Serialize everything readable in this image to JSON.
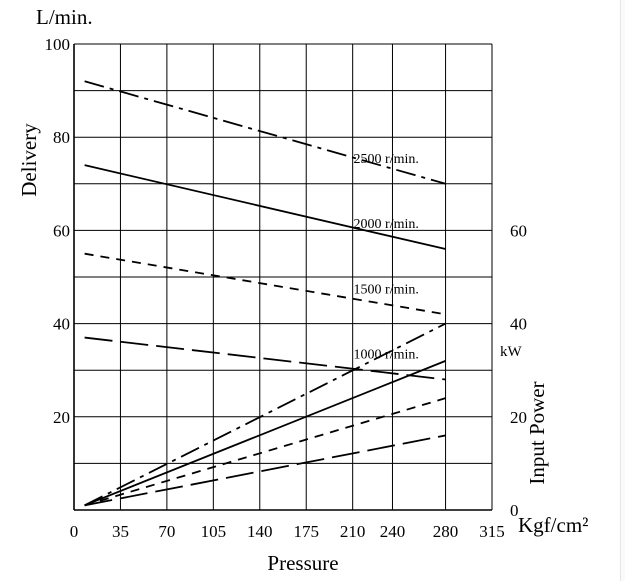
{
  "chart_data": {
    "type": "line",
    "xlabel": "Pressure",
    "x_unit": "Kgf/cm²",
    "x_ticks": [
      0,
      35,
      70,
      105,
      140,
      175,
      210,
      240,
      280,
      315
    ],
    "xlim": [
      0,
      315
    ],
    "delivery": {
      "ylabel": "Delivery",
      "unit": "L/min.",
      "ticks": [
        20,
        40,
        60,
        80,
        100
      ],
      "ylim": [
        0,
        100
      ],
      "series": [
        {
          "name": "2500 r/min.",
          "style": "dashdot",
          "x": [
            8,
            280
          ],
          "y": [
            92,
            70
          ]
        },
        {
          "name": "2000 r/min.",
          "style": "solid",
          "x": [
            8,
            280
          ],
          "y": [
            74,
            56
          ]
        },
        {
          "name": "1500 r/min.",
          "style": "dashed",
          "x": [
            8,
            280
          ],
          "y": [
            55,
            42
          ]
        },
        {
          "name": "1000 r/min.",
          "style": "longdash",
          "x": [
            8,
            280
          ],
          "y": [
            37,
            28
          ]
        }
      ]
    },
    "input_power": {
      "ylabel": "Input Power",
      "unit": "kW",
      "ticks": [
        0,
        20,
        40,
        60
      ],
      "ylim": [
        0,
        100
      ],
      "series": [
        {
          "style": "dashdot",
          "x": [
            8,
            280
          ],
          "y": [
            1,
            40
          ]
        },
        {
          "style": "solid",
          "x": [
            8,
            280
          ],
          "y": [
            1,
            32
          ]
        },
        {
          "style": "dashed",
          "x": [
            8,
            280
          ],
          "y": [
            1,
            24
          ]
        },
        {
          "style": "longdash",
          "x": [
            8,
            280
          ],
          "y": [
            1,
            16
          ]
        }
      ]
    },
    "grid": true
  }
}
